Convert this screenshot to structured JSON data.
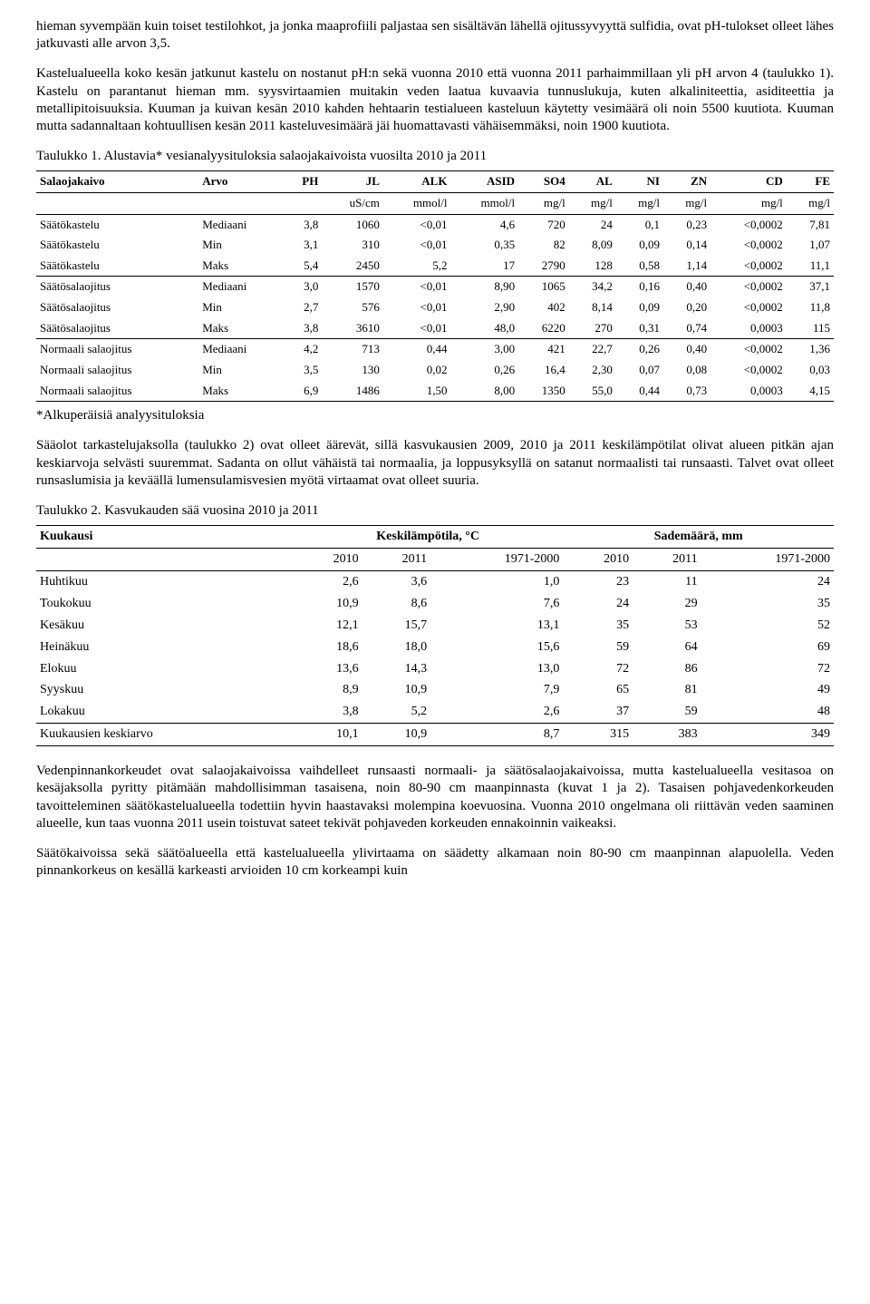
{
  "para1": "hieman syvempään kuin toiset testilohkot, ja jonka maaprofiili paljastaa sen sisältävän lähellä ojitussyvyyttä sulfidia, ovat pH-tulokset olleet lähes jatkuvasti alle arvon 3,5.",
  "para2": "Kastelualueella koko kesän jatkunut kastelu on nostanut pH:n sekä vuonna 2010 että vuonna 2011 parhaimmillaan yli pH arvon 4 (taulukko 1). Kastelu on parantanut hieman mm. syysvirtaamien muitakin veden laatua kuvaavia tunnuslukuja, kuten alkaliniteettia, asiditeettia ja metallipitoisuuksia. Kuuman ja kuivan kesän 2010 kahden hehtaarin testialueen kasteluun käytetty vesimäärä oli noin 5500 kuutiota. Kuuman mutta sadannaltaan kohtuullisen kesän 2011 kasteluvesimäärä jäi huomattavasti vähäisemmäksi, noin 1900 kuutiota.",
  "table1_caption": "Taulukko 1. Alustavia* vesianalyysituloksia salaojakaivoista vuosilta 2010 ja 2011",
  "t1": {
    "headers": [
      "Salaojakaivo",
      "Arvo",
      "PH",
      "JL",
      "ALK",
      "ASID",
      "SO4",
      "AL",
      "NI",
      "ZN",
      "CD",
      "FE"
    ],
    "units": [
      "",
      "",
      "",
      "uS/cm",
      "mmol/l",
      "mmol/l",
      "mg/l",
      "mg/l",
      "mg/l",
      "mg/l",
      "mg/l",
      "mg/l"
    ],
    "rows": [
      [
        "Säätökastelu",
        "Mediaani",
        "3,8",
        "1060",
        "<0,01",
        "4,6",
        "720",
        "24",
        "0,1",
        "0,23",
        "<0,0002",
        "7,81"
      ],
      [
        "Säätökastelu",
        "Min",
        "3,1",
        "310",
        "<0,01",
        "0,35",
        "82",
        "8,09",
        "0,09",
        "0,14",
        "<0,0002",
        "1,07"
      ],
      [
        "Säätökastelu",
        "Maks",
        "5,4",
        "2450",
        "5,2",
        "17",
        "2790",
        "128",
        "0,58",
        "1,14",
        "<0,0002",
        "11,1"
      ],
      [
        "Säätösalaojitus",
        "Mediaani",
        "3,0",
        "1570",
        "<0,01",
        "8,90",
        "1065",
        "34,2",
        "0,16",
        "0,40",
        "<0,0002",
        "37,1"
      ],
      [
        "Säätösalaojitus",
        "Min",
        "2,7",
        "576",
        "<0,01",
        "2,90",
        "402",
        "8,14",
        "0,09",
        "0,20",
        "<0,0002",
        "11,8"
      ],
      [
        "Säätösalaojitus",
        "Maks",
        "3,8",
        "3610",
        "<0,01",
        "48,0",
        "6220",
        "270",
        "0,31",
        "0,74",
        "0,0003",
        "115"
      ],
      [
        "Normaali salaojitus",
        "Mediaani",
        "4,2",
        "713",
        "0,44",
        "3,00",
        "421",
        "22,7",
        "0,26",
        "0,40",
        "<0,0002",
        "1,36"
      ],
      [
        "Normaali salaojitus",
        "Min",
        "3,5",
        "130",
        "0,02",
        "0,26",
        "16,4",
        "2,30",
        "0,07",
        "0,08",
        "<0,0002",
        "0,03"
      ],
      [
        "Normaali salaojitus",
        "Maks",
        "6,9",
        "1486",
        "1,50",
        "8,00",
        "1350",
        "55,0",
        "0,44",
        "0,73",
        "0,0003",
        "4,15"
      ]
    ],
    "section_breaks": [
      2,
      5
    ],
    "last_row_index": 8
  },
  "footnote": "*Alkuperäisiä analyysituloksia",
  "para3": "Sääolot tarkastelujaksolla (taulukko 2) ovat olleet äärevät, sillä kasvukausien 2009, 2010 ja 2011 keskilämpötilat olivat alueen pitkän ajan keskiarvoja selvästi suuremmat. Sadanta on ollut vähäistä tai normaalia, ja loppusyksyllä on satanut normaalisti tai runsaasti. Talvet ovat olleet runsaslumisia ja keväällä lumensulamisvesien myötä virtaamat ovat olleet suuria.",
  "table2_caption": "Taulukko 2. Kasvukauden sää vuosina 2010 ja 2011",
  "t2": {
    "hdr1": [
      "Kuukausi",
      "Keskilämpötila, °C",
      "Sademäärä, mm"
    ],
    "hdr2": [
      "",
      "2010",
      "2011",
      "1971-2000",
      "2010",
      "2011",
      "1971-2000"
    ],
    "rows": [
      [
        "Huhtikuu",
        "2,6",
        "3,6",
        "1,0",
        "23",
        "11",
        "24"
      ],
      [
        "Toukokuu",
        "10,9",
        "8,6",
        "7,6",
        "24",
        "29",
        "35"
      ],
      [
        "Kesäkuu",
        "12,1",
        "15,7",
        "13,1",
        "35",
        "53",
        "52"
      ],
      [
        "Heinäkuu",
        "18,6",
        "18,0",
        "15,6",
        "59",
        "64",
        "69"
      ],
      [
        "Elokuu",
        "13,6",
        "14,3",
        "13,0",
        "72",
        "86",
        "72"
      ],
      [
        "Syyskuu",
        "8,9",
        "10,9",
        "7,9",
        "65",
        "81",
        "49"
      ],
      [
        "Lokakuu",
        "3,8",
        "5,2",
        "2,6",
        "37",
        "59",
        "48"
      ],
      [
        "Kuukausien keskiarvo",
        "10,1",
        "10,9",
        "8,7",
        "315",
        "383",
        "349"
      ]
    ],
    "last_row_index": 7
  },
  "para4": "Vedenpinnankorkeudet ovat salaojakaivoissa vaihdelleet runsaasti normaali- ja säätösalaojakaivoissa, mutta kastelualueella vesitasoa on kesäjaksolla pyritty pitämään mahdollisimman tasaisena, noin 80-90 cm maanpinnasta (kuvat 1 ja 2). Tasaisen pohjavedenkorkeuden tavoitteleminen säätökastelualueella todettiin hyvin haastavaksi molempina koevuosina. Vuonna 2010 ongelmana oli riittävän veden saaminen alueelle, kun taas vuonna 2011 usein toistuvat sateet tekivät pohjaveden korkeuden ennakoinnin vaikeaksi.",
  "para5": "Säätökaivoissa sekä säätöalueella että kastelualueella ylivirtaama on säädetty alkamaan noin 80-90 cm maanpinnan alapuolella. Veden pinnankorkeus on kesällä karkeasti arvioiden 10 cm korkeampi kuin"
}
